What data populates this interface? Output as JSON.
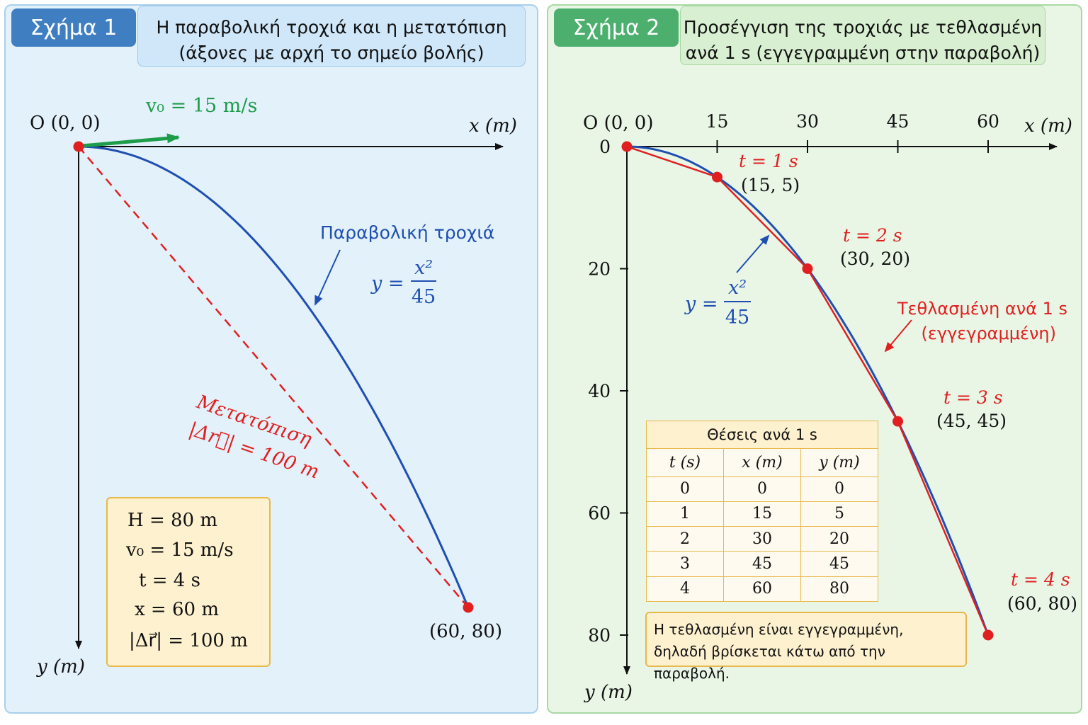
{
  "fig1": {
    "badge": "Σχήμα 1",
    "title_line1": "Η παραβολική τροχιά και η μετατόπιση",
    "title_line2": "(άξονες με αρχή το σημείο βολής)",
    "origin_label": "O (0, 0)",
    "x_axis_label": "x (m)",
    "y_axis_label": "y (m)",
    "velocity_label": "v₀ = 15 m/s",
    "trajectory_label": "Παραβολική τροχιά",
    "eq_lhs": "y =",
    "eq_num": "x²",
    "eq_den": "45",
    "displacement_label1": "Μετατόπιση",
    "displacement_label2": "|Δr⃗| = 100 m",
    "endpoint_label": "(60, 80)",
    "info": [
      "H = 80 m",
      "v₀ = 15 m/s",
      "t = 4 s",
      "x = 60 m",
      "|Δr⃗| = 100 m"
    ],
    "endpoint": {
      "x": 60,
      "y": 80
    },
    "colors": {
      "trajectory": "#1f4fb0",
      "displacement": "#e02020",
      "velocity": "#1d9c4a",
      "point": "#e02020"
    }
  },
  "fig2": {
    "badge": "Σχήμα 2",
    "title_line1": "Προσέγγιση της τροχιάς με τεθλασμένη",
    "title_line2": "ανά 1 s (εγγεγραμμένη στην παραβολή)",
    "origin_label": "O (0, 0)",
    "x_axis_label": "x (m)",
    "y_axis_label": "y (m)",
    "x_ticks": [
      "15",
      "30",
      "45",
      "60"
    ],
    "y_ticks": [
      "0",
      "20",
      "40",
      "60",
      "80"
    ],
    "eq_lhs": "y =",
    "eq_num": "x²",
    "eq_den": "45",
    "polyline_label1": "Τεθλασμένη ανά 1 s",
    "polyline_label2": "(εγγεγραμμένη)",
    "point_labels": [
      {
        "t": "t = 1 s",
        "xy": "(15, 5)"
      },
      {
        "t": "t = 2 s",
        "xy": "(30, 20)"
      },
      {
        "t": "t = 3 s",
        "xy": "(45, 45)"
      },
      {
        "t": "t = 4 s",
        "xy": "(60, 80)"
      }
    ],
    "table": {
      "caption": "Θέσεις ανά 1 s",
      "headers": [
        "t (s)",
        "x (m)",
        "y (m)"
      ],
      "rows": [
        [
          "0",
          "0",
          "0"
        ],
        [
          "1",
          "15",
          "5"
        ],
        [
          "2",
          "30",
          "20"
        ],
        [
          "3",
          "45",
          "45"
        ],
        [
          "4",
          "60",
          "80"
        ]
      ]
    },
    "note_line1": "Η τεθλασμένη είναι εγγεγραμμένη,",
    "note_line2": "δηλαδή βρίσκεται κάτω από την παραβολή."
  }
}
